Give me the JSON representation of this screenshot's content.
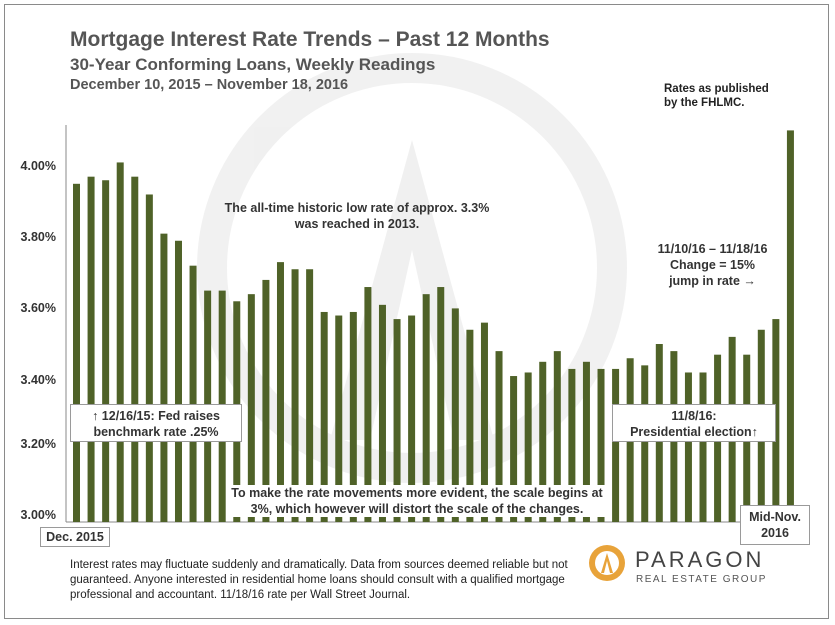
{
  "chart_data": {
    "type": "bar",
    "title": "Mortgage Interest Rate Trends – Past 12 Months",
    "subtitle": "30-Year Conforming  Loans, Weekly Readings",
    "date_range": "December 10, 2015 – November 18, 2016",
    "source_note": "Rates as published by the FHLMC.",
    "ylim": [
      3.0,
      4.1
    ],
    "yticks": [
      "3.00%",
      "3.20%",
      "3.40%",
      "3.60%",
      "3.80%",
      "4.00%"
    ],
    "ytick_values": [
      3.0,
      3.2,
      3.4,
      3.6,
      3.8,
      4.0
    ],
    "grid": false,
    "bar_color": "#4f6228",
    "x_start_label": "Dec. 2015",
    "x_end_label": "Mid-Nov. 2016",
    "values": [
      3.95,
      3.97,
      3.96,
      4.01,
      3.97,
      3.92,
      3.81,
      3.79,
      3.72,
      3.65,
      3.65,
      3.62,
      3.64,
      3.68,
      3.73,
      3.71,
      3.71,
      3.59,
      3.58,
      3.59,
      3.66,
      3.61,
      3.57,
      3.58,
      3.64,
      3.66,
      3.6,
      3.54,
      3.56,
      3.48,
      3.41,
      3.42,
      3.45,
      3.48,
      3.43,
      3.45,
      3.43,
      3.43,
      3.46,
      3.44,
      3.5,
      3.48,
      3.42,
      3.42,
      3.47,
      3.52,
      3.47,
      3.54,
      3.57,
      4.1
    ],
    "annotations": {
      "historic_low": "The all-time historic low rate of approx. 3.3% was reached in 2013.",
      "change_line1": "11/10/16 – 11/18/16",
      "change_line2": "Change = 15%",
      "change_line3": "jump in rate →",
      "fed_line1": "↑   12/16/15: Fed raises",
      "fed_line2": "benchmark rate .25%",
      "election_line1": "11/8/16:",
      "election_line2": "Presidential election↑",
      "scale_note": "To make the rate movements more evident, the scale begins at 3%, which however will distort the scale of the changes."
    }
  },
  "footer": "Interest rates may fluctuate suddenly and dramatically. Data from sources deemed reliable but not guaranteed. Anyone interested in residential home loans should consult with a qualified mortgage professional and accountant. 11/18/16 rate per Wall Street Journal.",
  "logo": {
    "name": "PARAGON",
    "tagline": "REAL ESTATE GROUP",
    "icon": "paragon-flame-icon",
    "accent": "#e8a33a"
  }
}
